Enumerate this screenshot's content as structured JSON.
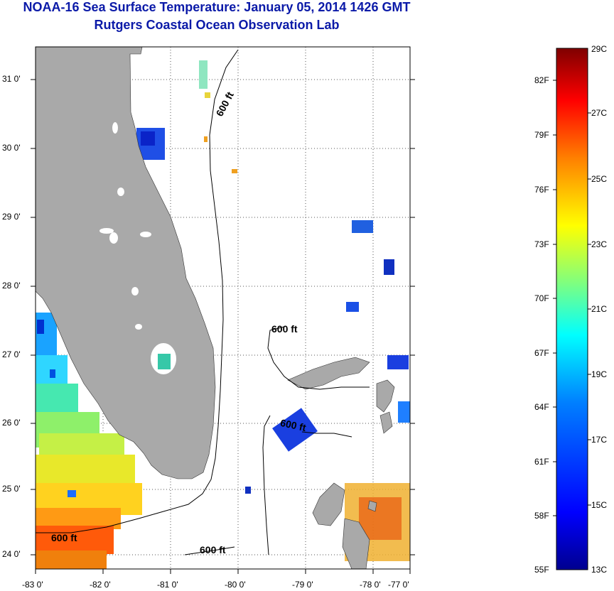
{
  "header": {
    "title": "NOAA-16 Sea Surface Temperature:  January 05, 2014 1426 GMT",
    "subtitle": "Rutgers Coastal Ocean Observation Lab"
  },
  "map": {
    "lon_labels": [
      "-83 0'",
      "-82 0'",
      "-81 0'",
      "-80 0'",
      "-79 0'",
      "-78 0'",
      "-77 0'"
    ],
    "lat_labels": [
      "31 0'",
      "30 0'",
      "29 0'",
      "28 0'",
      "27 0'",
      "26 0'",
      "25 0'",
      "24 0'"
    ],
    "isobath_labels": [
      "600 ft",
      "600 ft",
      "600 ft",
      "600 ft",
      "600 ft"
    ],
    "colors": {
      "land": "#a9a9a9",
      "frame": "#000000"
    }
  },
  "colorbar": {
    "fahrenheit": [
      "82F",
      "79F",
      "76F",
      "73F",
      "70F",
      "67F",
      "64F",
      "61F",
      "58F",
      "55F"
    ],
    "celsius": [
      "29C",
      "27C",
      "25C",
      "23C",
      "21C",
      "19C",
      "17C",
      "15C",
      "13C"
    ],
    "gradient": [
      "#00008f",
      "#0000ff",
      "#007fff",
      "#00ffff",
      "#7fff7f",
      "#ffff00",
      "#ff7f00",
      "#ff0000",
      "#7f0000"
    ]
  }
}
